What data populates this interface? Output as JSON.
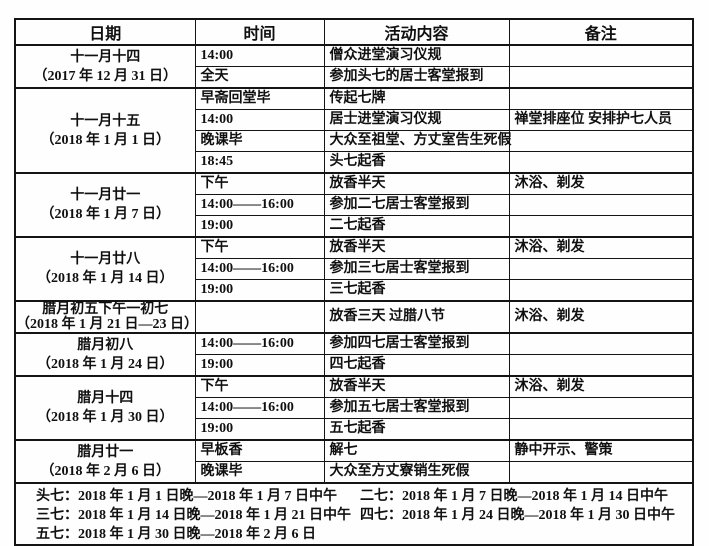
{
  "colors": {
    "border": "#141414",
    "text": "#101010",
    "background": "#fefefe"
  },
  "table": {
    "headers": [
      "日期",
      "时间",
      "活动内容",
      "备注"
    ],
    "groups": [
      {
        "lunar": "十一月十四",
        "gregorian": "（2017 年 12 月 31 日）",
        "rows": [
          {
            "time": "14:00",
            "activity": "僧众进堂演习仪规",
            "note": ""
          },
          {
            "time": "全天",
            "activity": "参加头七的居士客堂报到",
            "note": ""
          }
        ]
      },
      {
        "lunar": "十一月十五",
        "gregorian": "（2018 年 1 月 1 日）",
        "rows": [
          {
            "time": "早斋回堂毕",
            "activity": "传起七牌",
            "note": ""
          },
          {
            "time": "14:00",
            "activity": "居士进堂演习仪规",
            "note": "禅堂排座位 安排护七人员"
          },
          {
            "time": "晚课毕",
            "activity": "大众至祖堂、方丈室告生死假",
            "note": ""
          },
          {
            "time": "18:45",
            "activity": "头七起香",
            "note": ""
          }
        ]
      },
      {
        "lunar": "十一月廿一",
        "gregorian": "（2018 年 1 月 7 日）",
        "rows": [
          {
            "time": "下午",
            "activity": "放香半天",
            "note": "沐浴、剃发"
          },
          {
            "time": "14:00——16:00",
            "activity": "参加二七居士客堂报到",
            "note": ""
          },
          {
            "time": "19:00",
            "activity": "二七起香",
            "note": ""
          }
        ]
      },
      {
        "lunar": "十一月廿八",
        "gregorian": "（2018 年 1 月 14 日）",
        "rows": [
          {
            "time": "下午",
            "activity": "放香半天",
            "note": "沐浴、剃发"
          },
          {
            "time": "14:00——16:00",
            "activity": "参加三七居士客堂报到",
            "note": ""
          },
          {
            "time": "19:00",
            "activity": "三七起香",
            "note": ""
          }
        ]
      },
      {
        "lunar": "腊月初五下午一初七",
        "gregorian": "（2018 年 1 月 21 日—23 日）",
        "rows": [
          {
            "time": "",
            "activity": "放香三天 过腊八节",
            "note": "沐浴、剃发"
          }
        ]
      },
      {
        "lunar": "腊月初八",
        "gregorian": "（2018 年 1 月 24 日）",
        "rows": [
          {
            "time": "14:00——16:00",
            "activity": "参加四七居士客堂报到",
            "note": ""
          },
          {
            "time": "19:00",
            "activity": "四七起香",
            "note": ""
          }
        ]
      },
      {
        "lunar": "腊月十四",
        "gregorian": "（2018 年 1 月 30 日）",
        "rows": [
          {
            "time": "下午",
            "activity": "放香半天",
            "note": "沐浴、剃发"
          },
          {
            "time": "14:00——16:00",
            "activity": "参加五七居士客堂报到",
            "note": ""
          },
          {
            "time": "19:00",
            "activity": "五七起香",
            "note": ""
          }
        ]
      },
      {
        "lunar": "腊月廿一",
        "gregorian": "（2018 年 2 月 6 日）",
        "rows": [
          {
            "time": "早板香",
            "activity": "解七",
            "note": "静中开示、警策"
          },
          {
            "time": "晚课毕",
            "activity": "大众至方丈寮销生死假",
            "note": ""
          }
        ]
      }
    ],
    "footer_lines": [
      {
        "left": "头七：2018 年 1 月 1 日晚—2018 年 1 月 7 日中午",
        "right": "二七：2018 年 1 月 7 日晚—2018 年 1 月 14 日中午"
      },
      {
        "left": "三七：2018 年 1 月 14 日晚—2018 年 1 月 21 日中午",
        "right": "四七：2018 年 1 月 24 日晚—2018 年 1 月 30 日中午"
      },
      {
        "left": "五七：2018 年 1 月 30 日晚—2018 年 2 月 6 日",
        "right": ""
      }
    ]
  }
}
